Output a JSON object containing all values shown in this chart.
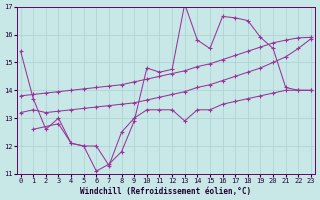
{
  "background_color": "#c8e8e8",
  "line_color": "#993399",
  "xlim_min": 0,
  "xlim_max": 23,
  "ylim_min": 11,
  "ylim_max": 17,
  "yticks": [
    11,
    12,
    13,
    14,
    15,
    16,
    17
  ],
  "xticks": [
    0,
    1,
    2,
    3,
    4,
    5,
    6,
    7,
    8,
    9,
    10,
    11,
    12,
    13,
    14,
    15,
    16,
    17,
    18,
    19,
    20,
    21,
    22,
    23
  ],
  "xlabel": "Windchill (Refroidissement éolien,°C)",
  "series": [
    {
      "x": [
        0,
        1,
        2,
        3,
        4,
        5,
        6,
        7,
        8,
        9,
        10,
        11,
        12,
        13,
        14,
        15,
        16,
        17,
        18,
        19,
        20,
        21,
        22,
        23
      ],
      "y": [
        15.4,
        13.7,
        12.6,
        13.0,
        12.1,
        12.0,
        11.1,
        11.35,
        11.8,
        12.9,
        14.8,
        14.65,
        14.75,
        17.1,
        15.8,
        15.5,
        16.65,
        16.6,
        16.5,
        15.9,
        15.5,
        14.1,
        14.0,
        14.0
      ]
    },
    {
      "x": [
        1,
        3,
        4,
        5,
        6,
        7,
        8,
        9,
        10,
        11,
        12,
        13,
        14,
        15,
        16,
        17,
        18,
        19,
        20,
        21,
        22,
        23
      ],
      "y": [
        12.6,
        12.8,
        12.1,
        12.0,
        12.0,
        11.3,
        12.5,
        13.0,
        13.3,
        13.3,
        13.3,
        12.9,
        13.3,
        13.3,
        13.5,
        13.6,
        13.7,
        13.8,
        13.9,
        14.0,
        14.0,
        14.0
      ]
    },
    {
      "x": [
        0,
        1,
        2,
        3,
        4,
        5,
        6,
        7,
        8,
        9,
        10,
        11,
        12,
        13,
        14,
        15,
        16,
        17,
        18,
        19,
        20,
        21,
        22,
        23
      ],
      "y": [
        13.2,
        13.3,
        13.2,
        13.25,
        13.3,
        13.35,
        13.4,
        13.45,
        13.5,
        13.55,
        13.65,
        13.75,
        13.85,
        13.95,
        14.1,
        14.2,
        14.35,
        14.5,
        14.65,
        14.8,
        15.0,
        15.2,
        15.5,
        15.85
      ]
    },
    {
      "x": [
        0,
        1,
        2,
        3,
        4,
        5,
        6,
        7,
        8,
        9,
        10,
        11,
        12,
        13,
        14,
        15,
        16,
        17,
        18,
        19,
        20,
        21,
        22,
        23
      ],
      "y": [
        13.8,
        13.85,
        13.9,
        13.95,
        14.0,
        14.05,
        14.1,
        14.15,
        14.2,
        14.3,
        14.4,
        14.5,
        14.6,
        14.7,
        14.85,
        14.95,
        15.1,
        15.25,
        15.4,
        15.55,
        15.7,
        15.8,
        15.88,
        15.9
      ]
    }
  ]
}
